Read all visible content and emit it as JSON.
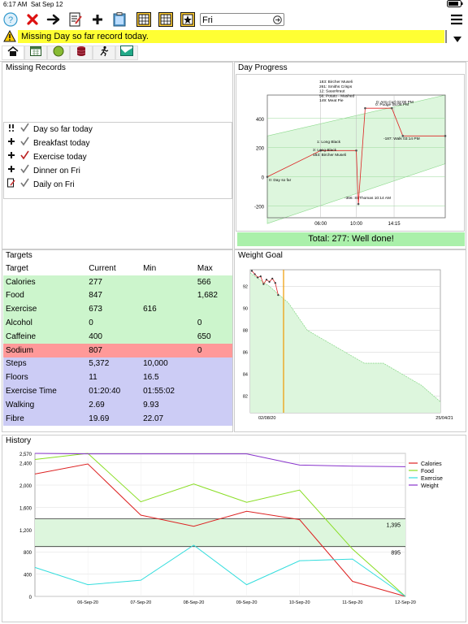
{
  "status_bar": {
    "time": "6:17 AM",
    "date": "Sat Sep 12"
  },
  "toolbar": {
    "search_value": "Fri",
    "icons": [
      "help-icon",
      "delete-icon",
      "forward-icon",
      "edit-icon",
      "add-icon",
      "clipboard-icon",
      "calendar-grid-icon",
      "calendar-icon",
      "calendar-star-icon",
      "menu-icon"
    ]
  },
  "alert": {
    "text": "Missing Day so far record today."
  },
  "tabs": [
    "home-icon",
    "calendar-icon",
    "food-icon",
    "database-icon",
    "exercise-icon",
    "weight-chart-icon"
  ],
  "missing_records": {
    "title": "Missing Records",
    "items": [
      {
        "label": "Day so far today"
      },
      {
        "label": "Breakfast today"
      },
      {
        "label": "Exercise today"
      },
      {
        "label": "Dinner on Fri"
      },
      {
        "label": "Daily on Fri"
      }
    ]
  },
  "day_progress": {
    "title": "Day Progress",
    "total": "Total: 277: Well done!",
    "notes": [
      "183: Bircher Museli",
      "261: Smiths Crisps",
      "12: Sauerkraut",
      "56: Potato - Mashed",
      "149: Meat Pie"
    ],
    "annotations": [
      "0: Day so far",
      "1: Long Black",
      "3: Long Black",
      "183: Bircher Museli",
      "-366: St Thomas 10:14 AM",
      "-187: Walk 03:14 PM",
      "0: Pudge 05:08 PM",
      "0: Arm Curl 02:00 PM"
    ]
  },
  "targets": {
    "title": "Targets",
    "headers": [
      "Target",
      "Current",
      "Min",
      "Max"
    ],
    "rows": [
      {
        "name": "Calories",
        "current": "277",
        "min": "",
        "max": "566",
        "status": "ok"
      },
      {
        "name": "Food",
        "current": "847",
        "min": "",
        "max": "1,682",
        "status": "ok"
      },
      {
        "name": "Exercise",
        "current": "673",
        "min": "616",
        "max": "",
        "status": "ok"
      },
      {
        "name": "Alcohol",
        "current": "0",
        "min": "",
        "max": "0",
        "status": "ok"
      },
      {
        "name": "Caffeine",
        "current": "400",
        "min": "",
        "max": "650",
        "status": "ok"
      },
      {
        "name": "Sodium",
        "current": "807",
        "min": "",
        "max": "0",
        "status": "over"
      },
      {
        "name": "Steps",
        "current": "5,372",
        "min": "10,000",
        "max": "",
        "status": "under"
      },
      {
        "name": "Floors",
        "current": "11",
        "min": "16.5",
        "max": "",
        "status": "under"
      },
      {
        "name": "Exercise Time",
        "current": "01:20:40",
        "min": "01:55:02",
        "max": "",
        "status": "under"
      },
      {
        "name": "Walking",
        "current": "2.69",
        "min": "9.93",
        "max": "",
        "status": "under"
      },
      {
        "name": "Fibre",
        "current": "19.69",
        "min": "22.07",
        "max": "",
        "status": "under"
      }
    ]
  },
  "weight_goal": {
    "title": "Weight Goal"
  },
  "history": {
    "title": "History"
  },
  "colors": {
    "ok": "#ccf5cc",
    "over": "#ff9999",
    "under": "#ccccf5",
    "alert": "#ffff33",
    "calories": "#dd2222",
    "food": "#88dd22",
    "exercise": "#33dddd",
    "weight": "#8833cc"
  },
  "chart_data": [
    {
      "type": "line",
      "title": "Day Progress",
      "xlabel": "",
      "ylabel": "",
      "x_ticks": [
        "06:00",
        "10:00",
        "14:15"
      ],
      "y_ticks": [
        -200,
        0,
        200,
        400
      ],
      "ylim": [
        -280,
        560
      ],
      "series": [
        {
          "x": [
            "00:00",
            "06:00",
            "10:00",
            "10:14",
            "11:00",
            "14:00",
            "15:14",
            "20:00"
          ],
          "values": [
            0,
            180,
            180,
            -186,
            470,
            470,
            280,
            280
          ]
        }
      ]
    },
    {
      "type": "line",
      "title": "Weight Goal",
      "x_ticks": [
        "02/08/20",
        "25/04/21"
      ],
      "y_ticks": [
        82,
        84,
        86,
        88,
        90,
        92
      ],
      "ylim": [
        80.5,
        93.5
      ],
      "series": [
        {
          "values": [
            93.4,
            93.1,
            92.8,
            92.9,
            92.2,
            92.6,
            92.4,
            92.7,
            92.3,
            91.2
          ]
        },
        {
          "values": [
            93.2,
            92.0,
            90.5,
            88.0,
            87.0,
            86.0,
            85.0,
            85.0,
            84.0,
            83.0,
            81.5
          ]
        }
      ]
    },
    {
      "type": "line",
      "title": "History",
      "x_ticks": [
        "06-Sep-20",
        "07-Sep-20",
        "08-Sep-20",
        "09-Sep-20",
        "10-Sep-20",
        "11-Sep-20",
        "12-Sep-20"
      ],
      "y_ticks": [
        "0",
        "400",
        "800",
        "1,200",
        "1,600",
        "2,000",
        "2,400",
        "2,570"
      ],
      "ylim": [
        0,
        2570
      ],
      "ref_lines": [
        {
          "value": 1395,
          "label": "1,395"
        },
        {
          "value": 895,
          "label": "895"
        }
      ],
      "categories": [
        "05-Sep-20",
        "06-Sep-20",
        "07-Sep-20",
        "08-Sep-20",
        "09-Sep-20",
        "10-Sep-20",
        "11-Sep-20",
        "12-Sep-20"
      ],
      "series": [
        {
          "name": "Calories",
          "values": [
            2200,
            2380,
            1460,
            1260,
            1530,
            1380,
            270,
            0
          ]
        },
        {
          "name": "Food",
          "values": [
            2460,
            2570,
            1700,
            2020,
            1690,
            1910,
            850,
            0
          ]
        },
        {
          "name": "Exercise",
          "values": [
            520,
            210,
            290,
            920,
            210,
            640,
            670,
            0
          ]
        },
        {
          "name": "Weight",
          "values": [
            2570,
            2560,
            2560,
            2560,
            2560,
            2360,
            2340,
            2330
          ]
        }
      ]
    }
  ]
}
